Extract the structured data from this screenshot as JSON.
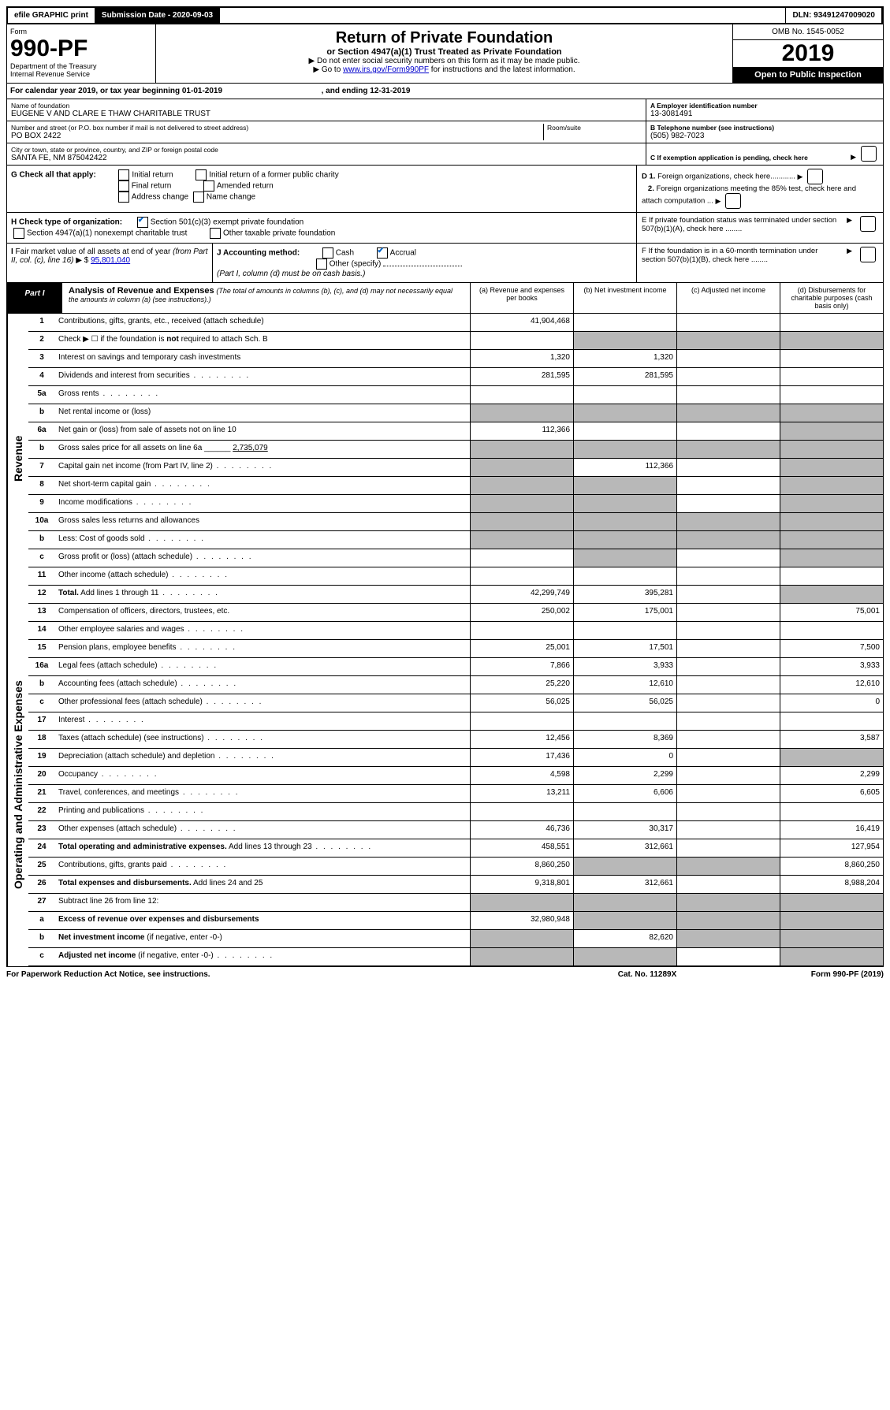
{
  "topbar": {
    "efile": "efile GRAPHIC print",
    "sub_label": "Submission Date - 2020-09-03",
    "dln": "DLN: 93491247009020"
  },
  "header": {
    "form_word": "Form",
    "form_num": "990-PF",
    "agency1": "Department of the Treasury",
    "agency2": "Internal Revenue Service",
    "title": "Return of Private Foundation",
    "subtitle": "or Section 4947(a)(1) Trust Treated as Private Foundation",
    "note1": "▶ Do not enter social security numbers on this form as it may be made public.",
    "note2_pre": "▶ Go to ",
    "note2_link": "www.irs.gov/Form990PF",
    "note2_post": " for instructions and the latest information.",
    "omb": "OMB No. 1545-0052",
    "year": "2019",
    "inspect": "Open to Public Inspection"
  },
  "cal": {
    "text_pre": "For calendar year 2019, or tax year beginning ",
    "begin": "01-01-2019",
    "text_mid": " , and ending ",
    "end": "12-31-2019"
  },
  "foundation": {
    "name_label": "Name of foundation",
    "name": "EUGENE V AND CLARE E THAW CHARITABLE TRUST",
    "addr_label": "Number and street (or P.O. box number if mail is not delivered to street address)",
    "room_label": "Room/suite",
    "addr": "PO BOX 2422",
    "city_label": "City or town, state or province, country, and ZIP or foreign postal code",
    "city": "SANTA FE, NM  875042422",
    "ein_label": "A Employer identification number",
    "ein": "13-3081491",
    "tel_label": "B Telephone number (see instructions)",
    "tel": "(505) 982-7023",
    "c_label": "C If exemption application is pending, check here"
  },
  "checks": {
    "g_label": "G Check all that apply:",
    "g1": "Initial return",
    "g2": "Initial return of a former public charity",
    "g3": "Final return",
    "g4": "Amended return",
    "g5": "Address change",
    "g6": "Name change",
    "h_label": "H Check type of organization:",
    "h1": "Section 501(c)(3) exempt private foundation",
    "h2": "Section 4947(a)(1) nonexempt charitable trust",
    "h3": "Other taxable private foundation",
    "d1": "D 1. Foreign organizations, check here............",
    "d2": "2. Foreign organizations meeting the 85% test, check here and attach computation ...",
    "e_label": "E  If private foundation status was terminated under section 507(b)(1)(A), check here ........",
    "i_label": "I Fair market value of all assets at end of year (from Part II, col. (c), line 16) ▶ $ ",
    "i_val": "95,801,040",
    "j_label": "J Accounting method:",
    "j1": "Cash",
    "j2": "Accrual",
    "j3": "Other (specify)",
    "j_note": "(Part I, column (d) must be on cash basis.)",
    "f_label": "F  If the foundation is in a 60-month termination under section 507(b)(1)(B), check here ........"
  },
  "part": {
    "label": "Part I",
    "title": "Analysis of Revenue and Expenses",
    "sub": "(The total of amounts in columns (b), (c), and (d) may not necessarily equal the amounts in column (a) (see instructions).)",
    "ca": "(a)  Revenue and expenses per books",
    "cb": "(b)  Net investment income",
    "cc": "(c)  Adjusted net income",
    "cd": "(d)  Disbursements for charitable purposes (cash basis only)"
  },
  "side1": "Revenue",
  "side2": "Operating and Administrative Expenses",
  "rows": [
    {
      "n": "1",
      "d": "Contributions, gifts, grants, etc., received (attach schedule)",
      "a": "41,904,468",
      "bg": false,
      "dg": false
    },
    {
      "n": "2",
      "d": "Check ▶ ☐ if the foundation is <b>not</b> required to attach Sch. B",
      "bg": true,
      "cg": true,
      "dg": true
    },
    {
      "n": "3",
      "d": "Interest on savings and temporary cash investments",
      "a": "1,320",
      "b": "1,320"
    },
    {
      "n": "4",
      "d": "Dividends and interest from securities",
      "a": "281,595",
      "b": "281,595",
      "dotted": true
    },
    {
      "n": "5a",
      "d": "Gross rents",
      "dotted": true
    },
    {
      "n": "b",
      "d": "Net rental income or (loss)",
      "bg": true,
      "cg": true,
      "dg": true,
      "ag": true,
      "inline": true
    },
    {
      "n": "6a",
      "d": "Net gain or (loss) from sale of assets not on line 10",
      "a": "112,366",
      "dg": true
    },
    {
      "n": "b",
      "d": "Gross sales price for all assets on line 6a ______",
      "inline": "2,735,079",
      "bg": true,
      "cg": true,
      "dg": true,
      "ag": true
    },
    {
      "n": "7",
      "d": "Capital gain net income (from Part IV, line 2)",
      "b": "112,366",
      "ag": true,
      "dg": true,
      "dotted": true
    },
    {
      "n": "8",
      "d": "Net short-term capital gain",
      "ag": true,
      "bg": true,
      "dg": true,
      "dotted": true
    },
    {
      "n": "9",
      "d": "Income modifications",
      "ag": true,
      "bg": true,
      "dg": true,
      "dotted": true
    },
    {
      "n": "10a",
      "d": "Gross sales less returns and allowances",
      "ag": true,
      "bg": true,
      "cg": true,
      "dg": true,
      "inline": true
    },
    {
      "n": "b",
      "d": "Less: Cost of goods sold",
      "ag": true,
      "bg": true,
      "cg": true,
      "dg": true,
      "inline": true,
      "dotted": true
    },
    {
      "n": "c",
      "d": "Gross profit or (loss) (attach schedule)",
      "bg": true,
      "dg": true,
      "dotted": true
    },
    {
      "n": "11",
      "d": "Other income (attach schedule)",
      "dotted": true
    },
    {
      "n": "12",
      "d": "<b>Total.</b> Add lines 1 through 11",
      "a": "42,299,749",
      "b": "395,281",
      "dg": true,
      "dotted": true
    }
  ],
  "rows2": [
    {
      "n": "13",
      "d": "Compensation of officers, directors, trustees, etc.",
      "a": "250,002",
      "b": "175,001",
      "dd": "75,001"
    },
    {
      "n": "14",
      "d": "Other employee salaries and wages",
      "dotted": true
    },
    {
      "n": "15",
      "d": "Pension plans, employee benefits",
      "a": "25,001",
      "b": "17,501",
      "dd": "7,500",
      "dotted": true
    },
    {
      "n": "16a",
      "d": "Legal fees (attach schedule)",
      "a": "7,866",
      "b": "3,933",
      "dd": "3,933",
      "dotted": true
    },
    {
      "n": "b",
      "d": "Accounting fees (attach schedule)",
      "a": "25,220",
      "b": "12,610",
      "dd": "12,610",
      "dotted": true
    },
    {
      "n": "c",
      "d": "Other professional fees (attach schedule)",
      "a": "56,025",
      "b": "56,025",
      "dd": "0",
      "dotted": true
    },
    {
      "n": "17",
      "d": "Interest",
      "dotted": true
    },
    {
      "n": "18",
      "d": "Taxes (attach schedule) (see instructions)",
      "a": "12,456",
      "b": "8,369",
      "dd": "3,587",
      "dotted": true
    },
    {
      "n": "19",
      "d": "Depreciation (attach schedule) and depletion",
      "a": "17,436",
      "b": "0",
      "dg": true,
      "dotted": true
    },
    {
      "n": "20",
      "d": "Occupancy",
      "a": "4,598",
      "b": "2,299",
      "dd": "2,299",
      "dotted": true
    },
    {
      "n": "21",
      "d": "Travel, conferences, and meetings",
      "a": "13,211",
      "b": "6,606",
      "dd": "6,605",
      "dotted": true
    },
    {
      "n": "22",
      "d": "Printing and publications",
      "dotted": true
    },
    {
      "n": "23",
      "d": "Other expenses (attach schedule)",
      "a": "46,736",
      "b": "30,317",
      "dd": "16,419",
      "dotted": true
    },
    {
      "n": "24",
      "d": "<b>Total operating and administrative expenses.</b> Add lines 13 through 23",
      "a": "458,551",
      "b": "312,661",
      "dd": "127,954",
      "dotted": true
    },
    {
      "n": "25",
      "d": "Contributions, gifts, grants paid",
      "a": "8,860,250",
      "bg": true,
      "cg": true,
      "dd": "8,860,250",
      "dotted": true
    },
    {
      "n": "26",
      "d": "<b>Total expenses and disbursements.</b> Add lines 24 and 25",
      "a": "9,318,801",
      "b": "312,661",
      "dd": "8,988,204"
    },
    {
      "n": "27",
      "d": "Subtract line 26 from line 12:",
      "ag": true,
      "bg": true,
      "cg": true,
      "dg": true
    },
    {
      "n": "a",
      "d": "<b>Excess of revenue over expenses and disbursements</b>",
      "a": "32,980,948",
      "bg": true,
      "cg": true,
      "dg": true
    },
    {
      "n": "b",
      "d": "<b>Net investment income</b> (if negative, enter -0-)",
      "ag": true,
      "b": "82,620",
      "cg": true,
      "dg": true
    },
    {
      "n": "c",
      "d": "<b>Adjusted net income</b> (if negative, enter -0-)",
      "ag": true,
      "bg": true,
      "dg": true,
      "dotted": true
    }
  ],
  "footer": {
    "f1": "For Paperwork Reduction Act Notice, see instructions.",
    "f2": "Cat. No. 11289X",
    "f3": "Form 990-PF (2019)"
  }
}
